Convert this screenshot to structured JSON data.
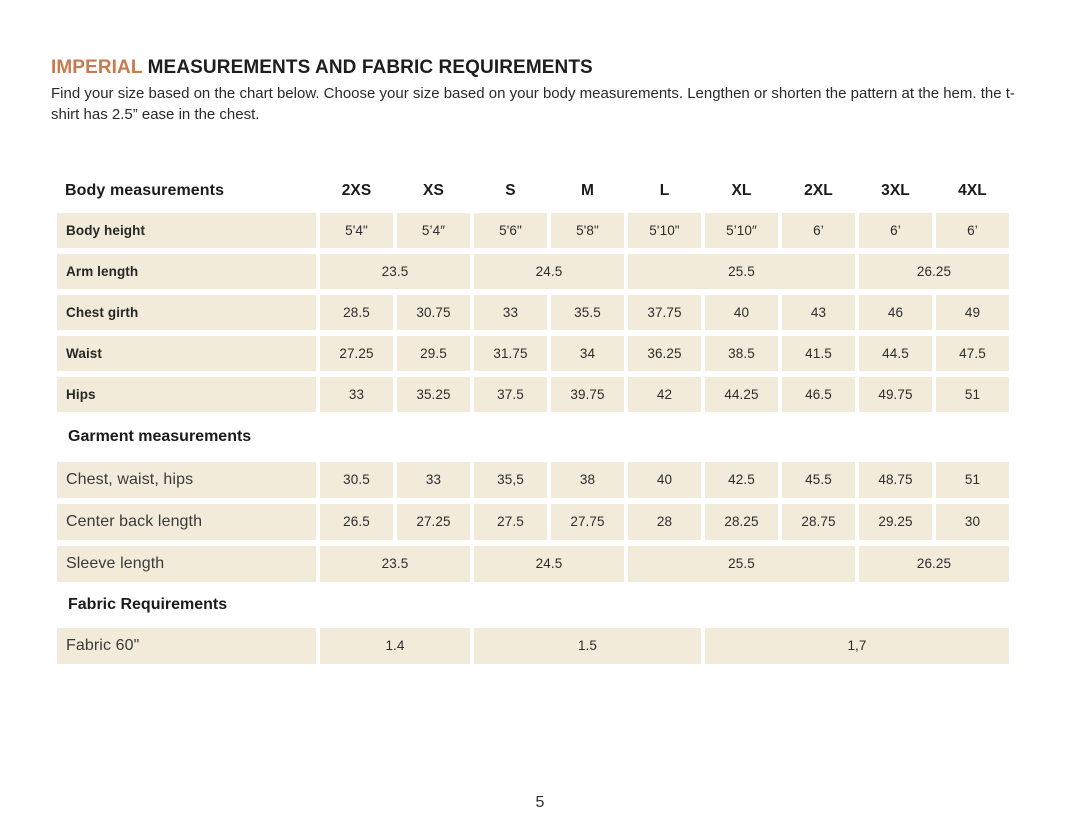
{
  "page": {
    "title_accent": "IMPERIAL",
    "title_rest": " MEASUREMENTS AND FABRIC REQUIREMENTS",
    "subtitle": "Find your size based on the chart below. Choose your size based on your body measurements. Lengthen or shorten the pattern at the hem. the t-shirt has 2.5” ease in the chest.",
    "page_number": "5"
  },
  "colors": {
    "accent_orange": "#c8794e",
    "cell_background": "#f2ebda",
    "text": "#232323"
  },
  "table": {
    "header": {
      "label": "Body measurements",
      "sizes": [
        "2XS",
        "XS",
        "S",
        "M",
        "L",
        "XL",
        "2XL",
        "3XL",
        "4XL"
      ]
    },
    "body_rows": [
      {
        "label": "Body height",
        "values": [
          "5'4\"",
          "5’4″",
          "5'6\"",
          "5'8\"",
          "5'10\"",
          "5’10″",
          "6’",
          "6’",
          "6’"
        ]
      },
      {
        "label": "Arm length",
        "values": [
          "23.5",
          "24.5",
          "25.5",
          "26.25"
        ],
        "spans": [
          2,
          2,
          3,
          2
        ]
      },
      {
        "label": "Chest girth",
        "values": [
          "28.5",
          "30.75",
          "33",
          "35.5",
          "37.75",
          "40",
          "43",
          "46",
          "49"
        ]
      },
      {
        "label": "Waist",
        "values": [
          "27.25",
          "29.5",
          "31.75",
          "34",
          "36.25",
          "38.5",
          "41.5",
          "44.5",
          "47.5"
        ]
      },
      {
        "label": "Hips",
        "values": [
          "33",
          "35.25",
          "37.5",
          "39.75",
          "42",
          "44.25",
          "46.5",
          "49.75",
          "51"
        ]
      }
    ],
    "garment_section": {
      "title": "Garment measurements",
      "rows": [
        {
          "label": "Chest, waist, hips",
          "values": [
            "30.5",
            "33",
            "35,5",
            "38",
            "40",
            "42.5",
            "45.5",
            "48.75",
            "51"
          ]
        },
        {
          "label": "Center back length",
          "values": [
            "26.5",
            "27.25",
            "27.5",
            "27.75",
            "28",
            "28.25",
            "28.75",
            "29.25",
            "30"
          ]
        },
        {
          "label": "Sleeve length",
          "values": [
            "23.5",
            "24.5",
            "25.5",
            "26.25"
          ],
          "spans": [
            2,
            2,
            3,
            2
          ]
        }
      ]
    },
    "fabric_section": {
      "title": "Fabric Requirements",
      "rows": [
        {
          "label": "Fabric 60\"",
          "values": [
            "1.4",
            "1.5",
            "1,7"
          ],
          "spans": [
            2,
            3,
            4
          ]
        }
      ]
    }
  }
}
